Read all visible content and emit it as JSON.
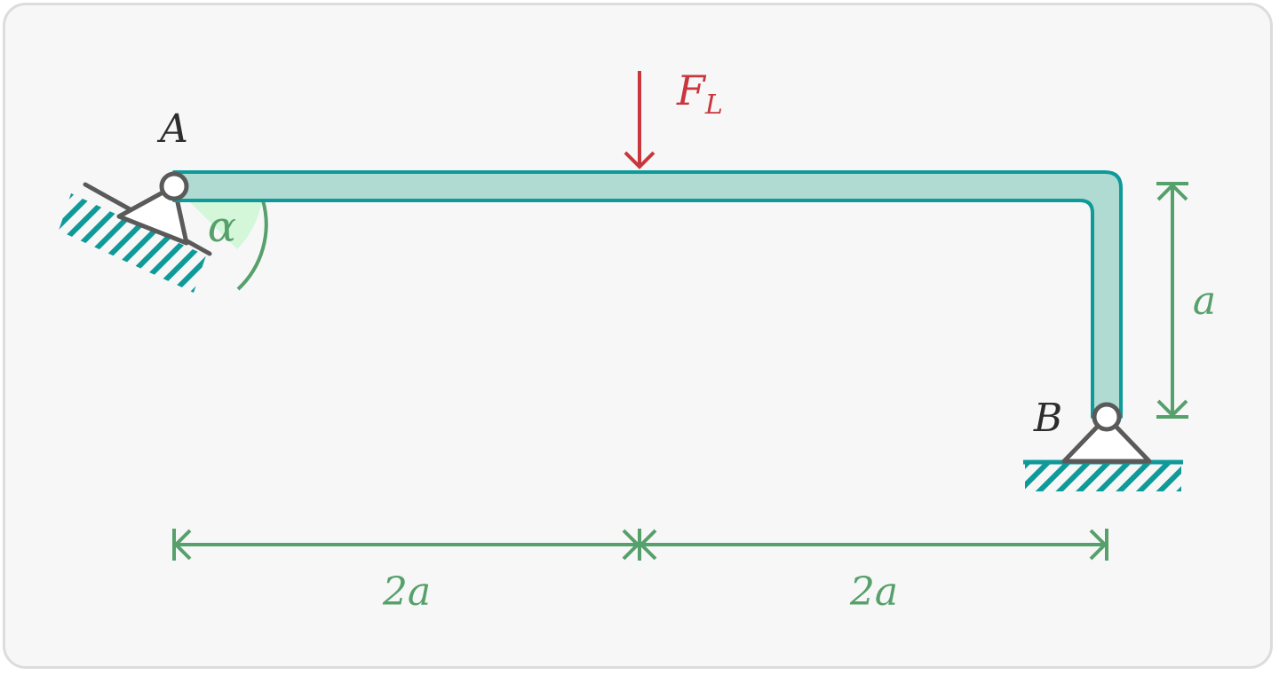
{
  "diagram": {
    "labels": {
      "point_a": "A",
      "point_b": "B",
      "force": "F",
      "force_sub": "L",
      "angle": "α",
      "dim_left": "2a",
      "dim_right": "2a",
      "dim_vertical": "a"
    },
    "colors": {
      "beam_fill": "#b0dbd2",
      "beam_stroke": "#0f9a9a",
      "hatch": "#0f9a9a",
      "support": "#5a5a5a",
      "force": "#c9363e",
      "dimension": "#56a06b",
      "angle_fill": "#d4f7da",
      "angle_stroke": "#56a06b",
      "text_dark": "#2d2d2d"
    }
  }
}
